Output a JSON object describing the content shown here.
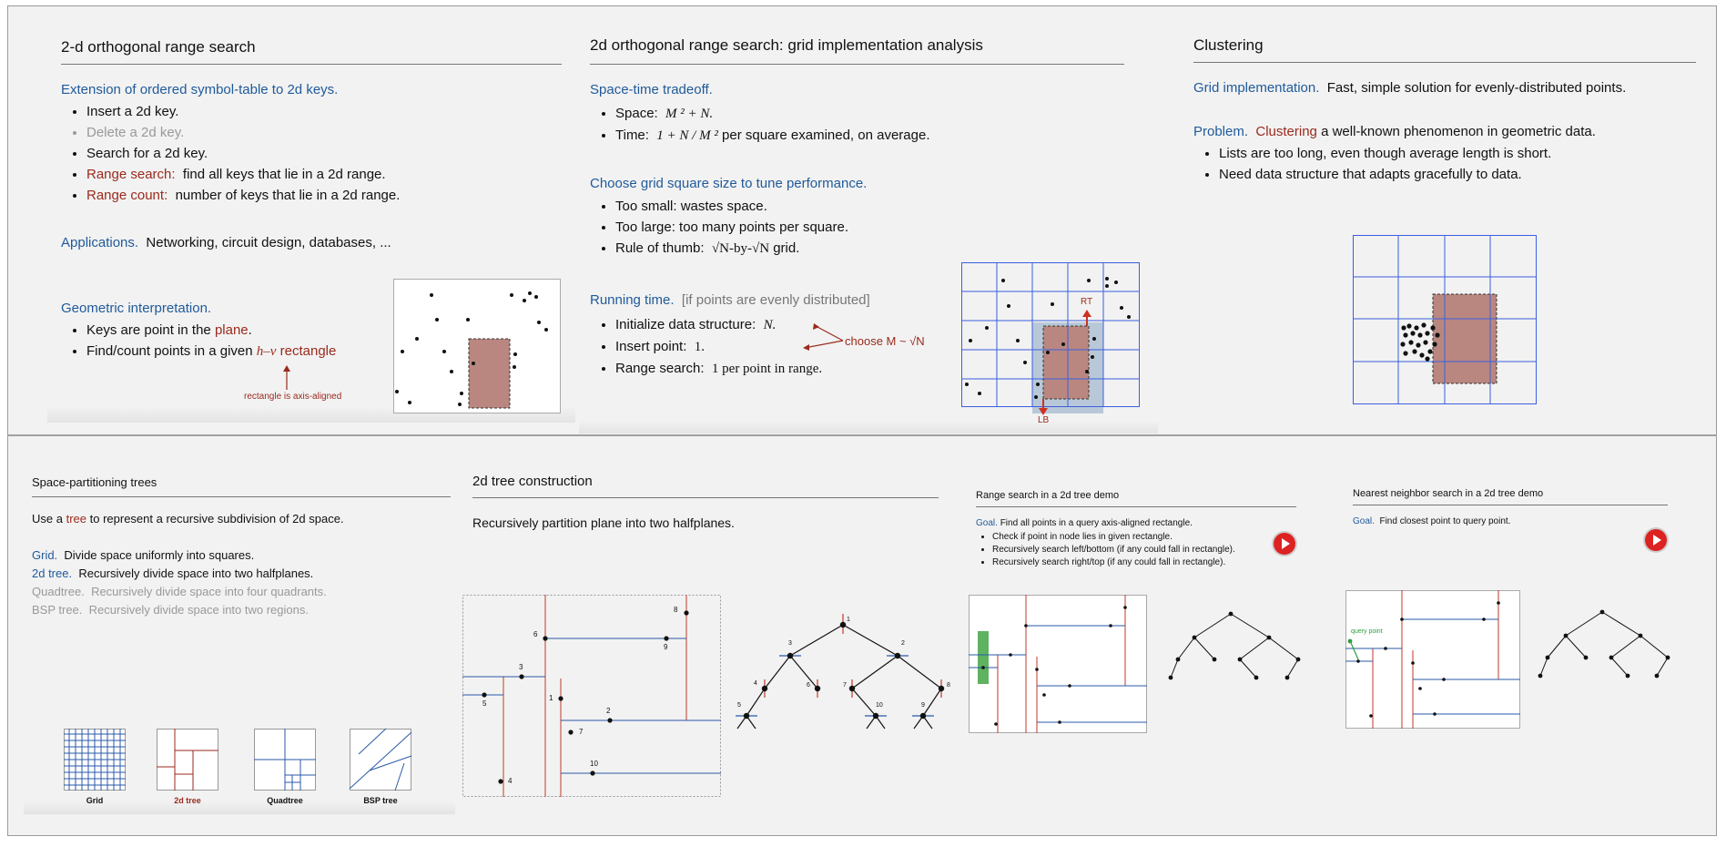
{
  "s1": {
    "title": "2-d orthogonal range search",
    "ext_heading": "Extension of ordered symbol-table to 2d keys.",
    "items": [
      {
        "label": "Insert a 2d key.",
        "rest": ""
      },
      {
        "label": "Delete a 2d key.",
        "rest": ""
      },
      {
        "label": "Search for a 2d key.",
        "rest": ""
      },
      {
        "label": "Range search:",
        "rest": "find all keys that lie in a 2d range."
      },
      {
        "label": "Range count:",
        "rest": "number of keys that lie in a 2d range."
      }
    ],
    "app_label": "Applications.",
    "app_rest": "Networking, circuit design, databases, ...",
    "geo_heading": "Geometric interpretation.",
    "geo1_a": "Keys are point in the",
    "geo1_b": "plane",
    "geo1_c": ".",
    "geo2_a": "Find/count points in a given",
    "geo2_b": "h–v",
    "geo2_c": "rectangle",
    "annot": "rectangle is axis-aligned"
  },
  "s2": {
    "title": "2d orthogonal range search:  grid implementation analysis",
    "h1": "Space-time tradeoff.",
    "space_label": "Space:",
    "space_val": "M ² + N.",
    "time_label": "Time:",
    "time_val": "1 + N / M ²",
    "time_rest": "per square examined, on average.",
    "h2": "Choose grid square size to tune performance.",
    "t1": "Too small:  wastes space.",
    "t2": "Too large:  too many points per square.",
    "t3_a": "Rule of thumb:",
    "t3_b": "√N-by-√N",
    "t3_c": "grid.",
    "h3": "Running time.",
    "h3_note": "[if points are evenly distributed]",
    "r1_a": "Initialize data structure:",
    "r1_b": "N.",
    "r2_a": "Insert point:",
    "r2_b": "1.",
    "r3_a": "Range search:",
    "r3_b": "1 per point in range.",
    "choose": "choose M ~ √N",
    "rt": "RT",
    "lb": "LB"
  },
  "s3": {
    "title": "Clustering",
    "g_label": "Grid implementation.",
    "g_rest": "Fast, simple solution for evenly-distributed points.",
    "p_label": "Problem.",
    "p_red": "Clustering",
    "p_rest": "a well-known phenomenon in geometric data.",
    "b1": "Lists are too long, even though average length is short.",
    "b2": "Need data structure that adapts gracefully to data."
  },
  "s4": {
    "title": "Space-partitioning trees",
    "use_a": "Use a",
    "use_b": "tree",
    "use_c": "to represent a recursive subdivision of 2d space.",
    "grid_l": "Grid.",
    "grid_r": "Divide space uniformly into squares.",
    "tree_l": "2d tree.",
    "tree_r": "Recursively divide space into two halfplanes.",
    "quad_l": "Quadtree.",
    "quad_r": "Recursively divide space into four quadrants.",
    "bsp_l": "BSP tree.",
    "bsp_r": "Recursively divide space into two regions.",
    "cap_grid": "Grid",
    "cap_2d": "2d tree",
    "cap_quad": "Quadtree",
    "cap_bsp": "BSP tree"
  },
  "s5": {
    "title": "2d tree construction",
    "text": "Recursively partition plane into two halfplanes.",
    "labels": [
      "1",
      "2",
      "3",
      "4",
      "5",
      "6",
      "7",
      "8",
      "9",
      "10"
    ]
  },
  "s6": {
    "title": "Range search in a 2d tree demo",
    "goal_l": "Goal.",
    "goal_r": "Find all points in a query axis-aligned rectangle.",
    "b1": "Check if point in node lies in given rectangle.",
    "b2": "Recursively search left/bottom (if any could fall in rectangle).",
    "b3": "Recursively search right/top (if any could fall in rectangle)."
  },
  "s7": {
    "title": "Nearest neighbor search in a 2d tree demo",
    "goal_l": "Goal.",
    "goal_r": "Find closest point to query point.",
    "query": "query point"
  }
}
